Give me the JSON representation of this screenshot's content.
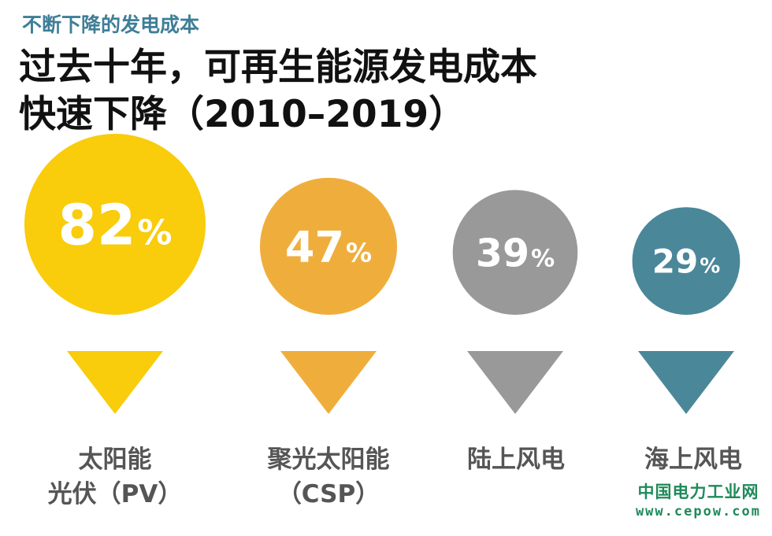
{
  "header": {
    "subtitle": "不断下降的发电成本",
    "title_line1": "过去十年，可再生能源发电成本",
    "title_line2": "快速下降（2010–2019）"
  },
  "chart_data": {
    "type": "bar",
    "title": "过去十年，可再生能源发电成本快速下降（2010–2019）",
    "subtitle": "不断下降的发电成本",
    "unit": "%",
    "categories": [
      "太阳能光伏（PV）",
      "聚光太阳能（CSP）",
      "陆上风电",
      "海上风电"
    ],
    "values": [
      82,
      47,
      39,
      29
    ],
    "colors": [
      "#f9cc0c",
      "#efae3c",
      "#999999",
      "#4a8799"
    ],
    "value_labels": [
      "82",
      "47",
      "39",
      "29"
    ],
    "percent_sign": "%",
    "category_lines": [
      [
        "太阳能",
        "光伏（PV）"
      ],
      [
        "聚光太阳能",
        "（CSP）"
      ],
      [
        "陆上风电"
      ],
      [
        "海上风电"
      ]
    ]
  },
  "watermark": {
    "name": "中国电力工业网",
    "url": "www.cepow.com"
  }
}
